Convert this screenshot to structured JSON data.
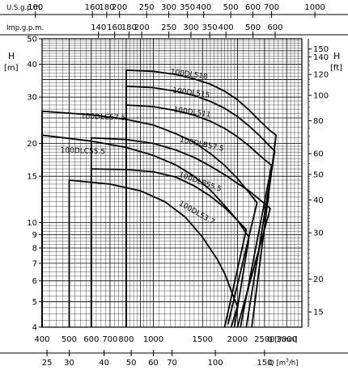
{
  "chart_data": {
    "type": "line",
    "axis_labels": {
      "left": "H",
      "left_unit": "[m]",
      "right": "H",
      "right_unit": "[ft]",
      "bottom_lmin": "Q [l/min]",
      "bottom_m3h_prefix": "Q [m",
      "bottom_m3h_sup": "3",
      "bottom_m3h_suffix": "/h]",
      "top_us": "U.S.g.p.m.",
      "top_imp": "Imp.g.p.m."
    },
    "x_lmin": {
      "scale": "log",
      "range": [
        400,
        3400
      ],
      "ticks": [
        400,
        500,
        600,
        700,
        800,
        1000,
        1500,
        2000,
        2500,
        3000
      ],
      "labels": [
        "400",
        "500",
        "600",
        "700",
        "800",
        "1000",
        "1500",
        "2000",
        "2500",
        "3000"
      ]
    },
    "y_m": {
      "scale": "log",
      "range": [
        4,
        50
      ],
      "ticks": [
        4,
        5,
        6,
        7,
        8,
        9,
        10,
        15,
        20,
        30,
        40,
        50
      ],
      "labels": [
        "4",
        "5",
        "6",
        "7",
        "8",
        "9",
        "10",
        "15",
        "20",
        "30",
        "40",
        "50"
      ]
    },
    "y_ft": {
      "ticks": [
        15,
        20,
        30,
        40,
        50,
        60,
        80,
        100,
        120,
        140,
        150
      ],
      "labels": [
        "15",
        "20",
        "30",
        "40",
        "50",
        "60",
        "80",
        "100",
        "120",
        "140",
        "150"
      ]
    },
    "x_m3h": {
      "ticks": [
        25,
        30,
        40,
        50,
        60,
        70,
        100,
        150
      ],
      "labels": [
        "25",
        "30",
        "40",
        "50",
        "60",
        "70",
        "100",
        "150"
      ]
    },
    "x_us": {
      "ticks": [
        100,
        160,
        180,
        200,
        250,
        300,
        350,
        400,
        500,
        600,
        700,
        1000
      ],
      "labels": [
        "100",
        "160",
        "180",
        "200",
        "250",
        "300",
        "350",
        "400",
        "500",
        "600",
        "700",
        "1000"
      ]
    },
    "x_imp": {
      "ticks": [
        140,
        160,
        180,
        200,
        250,
        300,
        350,
        400,
        500,
        600
      ],
      "labels": [
        "140",
        "160",
        "180",
        "200",
        "250",
        "300",
        "350",
        "400",
        "500",
        "600"
      ]
    },
    "series": [
      {
        "name": "100DL518",
        "points": [
          [
            800,
            38
          ],
          [
            1000,
            37.6
          ],
          [
            1200,
            36.6
          ],
          [
            1400,
            35.2
          ],
          [
            1600,
            33.6
          ],
          [
            1800,
            31.6
          ],
          [
            2000,
            29.3
          ],
          [
            2200,
            26.8
          ],
          [
            2400,
            24.4
          ],
          [
            2600,
            22.5
          ],
          [
            2750,
            21.5
          ]
        ],
        "end": [
          2250,
          4.0
        ],
        "label_at": [
          1150,
          36.8
        ]
      },
      {
        "name": "100DL515",
        "points": [
          [
            800,
            33
          ],
          [
            1000,
            32.6
          ],
          [
            1200,
            31.6
          ],
          [
            1400,
            30.4
          ],
          [
            1600,
            28.9
          ],
          [
            1800,
            27.2
          ],
          [
            2000,
            25.3
          ],
          [
            2200,
            23.3
          ],
          [
            2400,
            21.4
          ],
          [
            2600,
            19.6
          ],
          [
            2720,
            18.7
          ]
        ],
        "end": [
          2150,
          4.0
        ],
        "label_at": [
          1170,
          31.3
        ]
      },
      {
        "name": "100DL511",
        "points": [
          [
            800,
            28
          ],
          [
            1000,
            27.6
          ],
          [
            1200,
            26.7
          ],
          [
            1400,
            25.6
          ],
          [
            1600,
            24.3
          ],
          [
            1800,
            22.8
          ],
          [
            2000,
            21.2
          ],
          [
            2200,
            19.6
          ],
          [
            2400,
            18.0
          ],
          [
            2650,
            16.5
          ]
        ],
        "end": [
          2050,
          4.0
        ],
        "label_at": [
          1180,
          26.4
        ]
      },
      {
        "name": "100DLC57.5",
        "points": [
          [
            400,
            26.5
          ],
          [
            600,
            25.7
          ],
          [
            800,
            24.7
          ],
          [
            1000,
            23.5
          ],
          [
            1200,
            21.8
          ],
          [
            1400,
            20.2
          ],
          [
            1600,
            18.3
          ],
          [
            1800,
            16.5
          ],
          [
            2000,
            14.7
          ],
          [
            2200,
            13.0
          ],
          [
            2350,
            11.9
          ]
        ],
        "end": [
          1850,
          4.1
        ],
        "label_at": [
          550,
          24.9
        ]
      },
      {
        "name": "100DLB57.5",
        "points": [
          [
            600,
            21
          ],
          [
            800,
            20.7
          ],
          [
            1000,
            20.0
          ],
          [
            1200,
            18.9
          ],
          [
            1400,
            17.7
          ],
          [
            1600,
            16.4
          ],
          [
            1800,
            15.2
          ],
          [
            2000,
            14.1
          ],
          [
            2200,
            13.2
          ],
          [
            2500,
            11.8
          ],
          [
            2620,
            11.3
          ]
        ],
        "end": [
          2000,
          4.0
        ],
        "label_at": [
          1240,
          20.3
        ]
      },
      {
        "name": "100DLC55.5",
        "points": [
          [
            400,
            21.5
          ],
          [
            600,
            20.4
          ],
          [
            800,
            19.3
          ],
          [
            1000,
            18.0
          ],
          [
            1200,
            16.6
          ],
          [
            1400,
            15.0
          ],
          [
            1600,
            13.3
          ],
          [
            1800,
            11.6
          ],
          [
            2000,
            10.2
          ],
          [
            2150,
            9.4
          ]
        ],
        "end": [
          1800,
          4.0
        ],
        "label_at": [
          465,
          18.5
        ]
      },
      {
        "name": "100DLB55.5",
        "points": [
          [
            600,
            16
          ],
          [
            800,
            15.9
          ],
          [
            1000,
            15.6
          ],
          [
            1200,
            14.9
          ],
          [
            1400,
            13.8
          ],
          [
            1600,
            12.6
          ],
          [
            1800,
            11.4
          ],
          [
            2000,
            10.2
          ],
          [
            2200,
            8.8
          ]
        ],
        "end": [
          1950,
          4.0
        ],
        "label_at": [
          1230,
          15.0
        ]
      },
      {
        "name": "100DL53.7",
        "points": [
          [
            500,
            14.5
          ],
          [
            700,
            14.0
          ],
          [
            900,
            13.2
          ],
          [
            1100,
            12.0
          ],
          [
            1300,
            10.5
          ],
          [
            1500,
            8.8
          ],
          [
            1700,
            7.2
          ],
          [
            1800,
            6.4
          ],
          [
            1900,
            5.5
          ],
          [
            2000,
            4.8
          ]
        ],
        "end": [
          1900,
          4.0
        ],
        "label_at": [
          1230,
          11.7
        ]
      }
    ]
  }
}
